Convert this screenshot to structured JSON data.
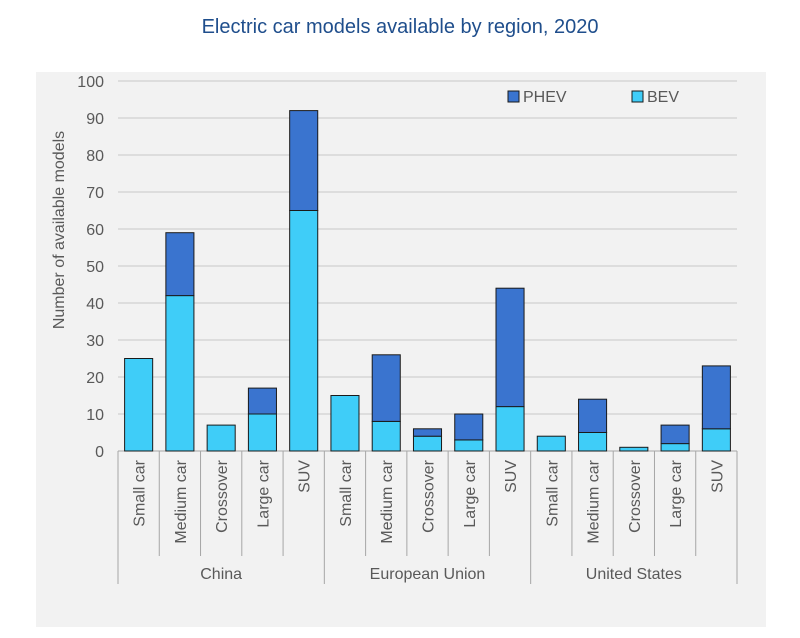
{
  "chart_data": {
    "type": "bar",
    "stacked": true,
    "title": "Electric car models available by region, 2020",
    "ylabel": "Number of available models",
    "xlabel": "",
    "ylim": [
      0,
      100
    ],
    "yticks": [
      0,
      10,
      20,
      30,
      40,
      50,
      60,
      70,
      80,
      90,
      100
    ],
    "grid": true,
    "legend": {
      "position": "top-right"
    },
    "groups": [
      "China",
      "European Union",
      "United States"
    ],
    "categories": [
      "Small car",
      "Medium car",
      "Crossover",
      "Large car",
      "SUV"
    ],
    "series": [
      {
        "name": "BEV",
        "color": "#3fcdf8",
        "values": [
          [
            25,
            42,
            7,
            10,
            65
          ],
          [
            15,
            8,
            4,
            3,
            12
          ],
          [
            4,
            5,
            1,
            2,
            6
          ]
        ]
      },
      {
        "name": "PHEV",
        "color": "#3a74cf",
        "values": [
          [
            0,
            17,
            0,
            7,
            27
          ],
          [
            0,
            18,
            2,
            7,
            32
          ],
          [
            0,
            9,
            0,
            5,
            17
          ]
        ]
      }
    ]
  }
}
